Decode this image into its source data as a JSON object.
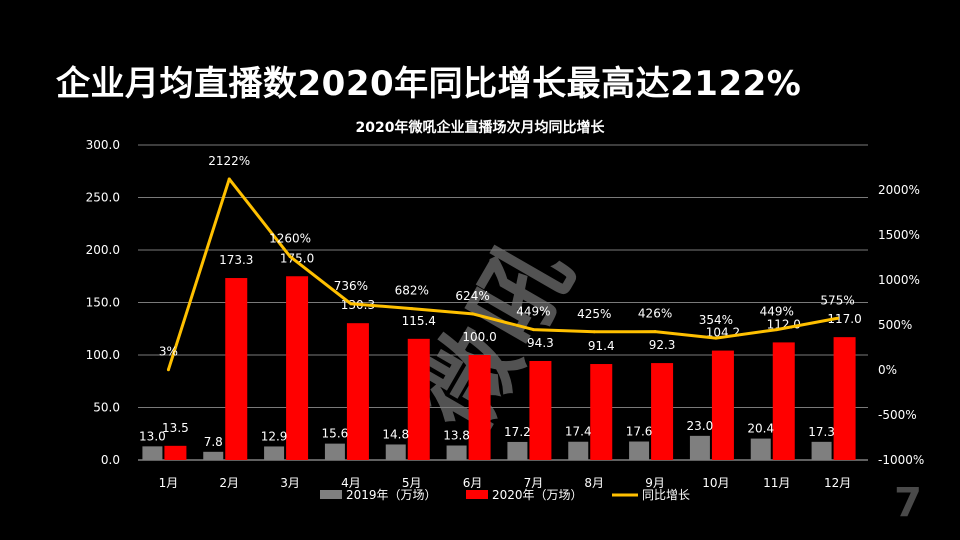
{
  "slide": {
    "title": "企业月均直播数2020年同比增长最高达2122%",
    "page_number": "7",
    "watermark": "微吼"
  },
  "chart_data": {
    "type": "bar",
    "title": "2020年微吼企业直播场次月均同比增长",
    "categories": [
      "1月",
      "2月",
      "3月",
      "4月",
      "5月",
      "6月",
      "7月",
      "8月",
      "9月",
      "10月",
      "11月",
      "12月"
    ],
    "series": [
      {
        "name": "2019年（万场）",
        "type": "bar",
        "color": "#7f7f7f",
        "values": [
          13.0,
          7.8,
          12.9,
          15.6,
          14.8,
          13.8,
          17.2,
          17.4,
          17.6,
          23.0,
          20.4,
          17.3
        ]
      },
      {
        "name": "2020年（万场）",
        "type": "bar",
        "color": "#ff0000",
        "values": [
          13.5,
          173.3,
          175.0,
          130.3,
          115.4,
          100.0,
          94.3,
          91.4,
          92.3,
          104.2,
          112.0,
          117.0
        ]
      },
      {
        "name": "同比增长",
        "type": "line",
        "axis": "right",
        "color": "#ffc000",
        "values": [
          3,
          2122,
          1260,
          736,
          682,
          624,
          449,
          425,
          426,
          354,
          449,
          575
        ],
        "labels": [
          "3%",
          "2122%",
          "1260%",
          "736%",
          "682%",
          "624%",
          "449%",
          "425%",
          "426%",
          "354%",
          "449%",
          "575%"
        ]
      }
    ],
    "ylim": [
      0,
      300
    ],
    "y_ticks": [
      "300.0",
      "250.0",
      "200.0",
      "150.0",
      "100.0",
      "50.0",
      "0.0"
    ],
    "y2lim": [
      -1000,
      2500
    ],
    "y2_ticks": [
      "2000%",
      "1500%",
      "1000%",
      "500%",
      "0%",
      "-500%",
      "-1000%"
    ],
    "grid": true,
    "legend_position": "bottom"
  }
}
